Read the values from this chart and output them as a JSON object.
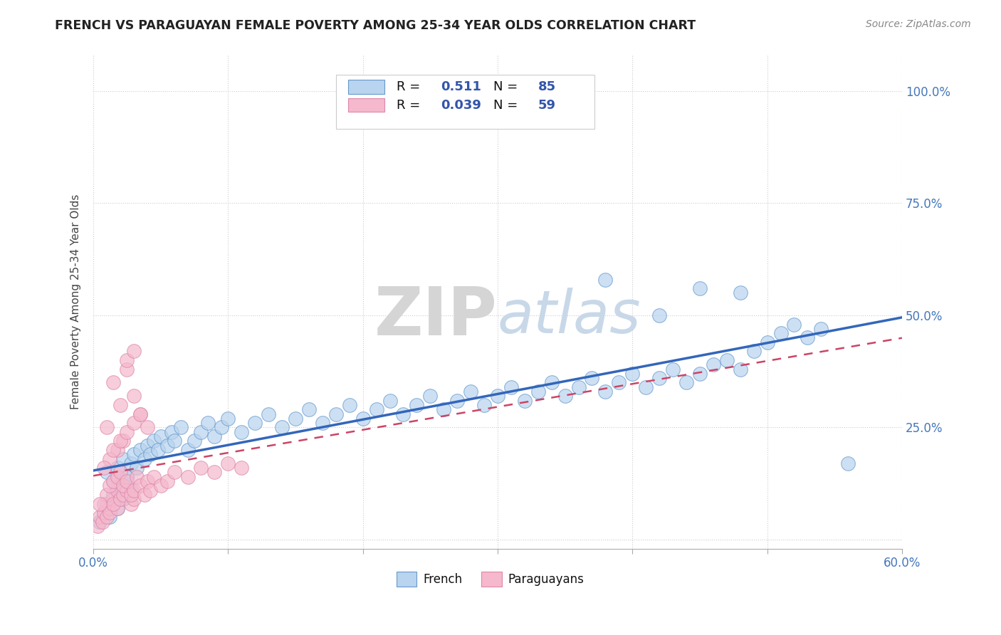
{
  "title": "FRENCH VS PARAGUAYAN FEMALE POVERTY AMONG 25-34 YEAR OLDS CORRELATION CHART",
  "source": "Source: ZipAtlas.com",
  "ylabel": "Female Poverty Among 25-34 Year Olds",
  "xlim": [
    0.0,
    0.6
  ],
  "ylim": [
    -0.02,
    1.08
  ],
  "french_R": 0.511,
  "french_N": 85,
  "paraguayan_R": 0.039,
  "paraguayan_N": 59,
  "french_color": "#b8d4ee",
  "french_edge_color": "#6699cc",
  "paraguayan_color": "#f5b8cc",
  "paraguayan_edge_color": "#dd88aa",
  "french_line_color": "#3366bb",
  "paraguayan_line_color": "#cc4466",
  "watermark_color": "#d8d8d8",
  "background_color": "#ffffff",
  "legend_text_color": "#3355aa",
  "tick_color": "#4477bb",
  "french_scatter_x": [
    0.005,
    0.008,
    0.01,
    0.012,
    0.015,
    0.018,
    0.02,
    0.022,
    0.025,
    0.028,
    0.01,
    0.015,
    0.018,
    0.022,
    0.025,
    0.028,
    0.03,
    0.032,
    0.035,
    0.038,
    0.04,
    0.042,
    0.045,
    0.048,
    0.05,
    0.055,
    0.058,
    0.06,
    0.065,
    0.07,
    0.075,
    0.08,
    0.085,
    0.09,
    0.095,
    0.1,
    0.11,
    0.12,
    0.13,
    0.14,
    0.15,
    0.16,
    0.17,
    0.18,
    0.19,
    0.2,
    0.21,
    0.22,
    0.23,
    0.24,
    0.25,
    0.26,
    0.27,
    0.28,
    0.29,
    0.3,
    0.31,
    0.32,
    0.33,
    0.34,
    0.35,
    0.36,
    0.37,
    0.38,
    0.39,
    0.4,
    0.41,
    0.42,
    0.43,
    0.44,
    0.45,
    0.46,
    0.47,
    0.48,
    0.49,
    0.5,
    0.51,
    0.52,
    0.53,
    0.54,
    0.38,
    0.42,
    0.45,
    0.48,
    0.56
  ],
  "french_scatter_y": [
    0.04,
    0.06,
    0.08,
    0.05,
    0.1,
    0.07,
    0.12,
    0.09,
    0.14,
    0.11,
    0.15,
    0.13,
    0.16,
    0.18,
    0.14,
    0.17,
    0.19,
    0.16,
    0.2,
    0.18,
    0.21,
    0.19,
    0.22,
    0.2,
    0.23,
    0.21,
    0.24,
    0.22,
    0.25,
    0.2,
    0.22,
    0.24,
    0.26,
    0.23,
    0.25,
    0.27,
    0.24,
    0.26,
    0.28,
    0.25,
    0.27,
    0.29,
    0.26,
    0.28,
    0.3,
    0.27,
    0.29,
    0.31,
    0.28,
    0.3,
    0.32,
    0.29,
    0.31,
    0.33,
    0.3,
    0.32,
    0.34,
    0.31,
    0.33,
    0.35,
    0.32,
    0.34,
    0.36,
    0.33,
    0.35,
    0.37,
    0.34,
    0.36,
    0.38,
    0.35,
    0.37,
    0.39,
    0.4,
    0.38,
    0.42,
    0.44,
    0.46,
    0.48,
    0.45,
    0.47,
    0.58,
    0.5,
    0.56,
    0.55,
    0.17
  ],
  "paraguayan_scatter_x": [
    0.003,
    0.005,
    0.007,
    0.008,
    0.01,
    0.012,
    0.008,
    0.012,
    0.015,
    0.018,
    0.01,
    0.015,
    0.018,
    0.012,
    0.02,
    0.015,
    0.022,
    0.018,
    0.025,
    0.02,
    0.028,
    0.022,
    0.03,
    0.025,
    0.028,
    0.032,
    0.03,
    0.035,
    0.038,
    0.04,
    0.042,
    0.045,
    0.05,
    0.055,
    0.06,
    0.07,
    0.08,
    0.09,
    0.1,
    0.11,
    0.015,
    0.02,
    0.025,
    0.03,
    0.035,
    0.04,
    0.025,
    0.03,
    0.018,
    0.022,
    0.012,
    0.008,
    0.005,
    0.01,
    0.015,
    0.02,
    0.025,
    0.03,
    0.035
  ],
  "paraguayan_scatter_y": [
    0.03,
    0.05,
    0.04,
    0.06,
    0.05,
    0.07,
    0.08,
    0.06,
    0.09,
    0.07,
    0.1,
    0.08,
    0.11,
    0.12,
    0.09,
    0.13,
    0.1,
    0.14,
    0.11,
    0.15,
    0.08,
    0.12,
    0.09,
    0.13,
    0.1,
    0.14,
    0.11,
    0.12,
    0.1,
    0.13,
    0.11,
    0.14,
    0.12,
    0.13,
    0.15,
    0.14,
    0.16,
    0.15,
    0.17,
    0.16,
    0.35,
    0.3,
    0.38,
    0.32,
    0.28,
    0.25,
    0.4,
    0.42,
    0.2,
    0.22,
    0.18,
    0.16,
    0.08,
    0.25,
    0.2,
    0.22,
    0.24,
    0.26,
    0.28
  ]
}
